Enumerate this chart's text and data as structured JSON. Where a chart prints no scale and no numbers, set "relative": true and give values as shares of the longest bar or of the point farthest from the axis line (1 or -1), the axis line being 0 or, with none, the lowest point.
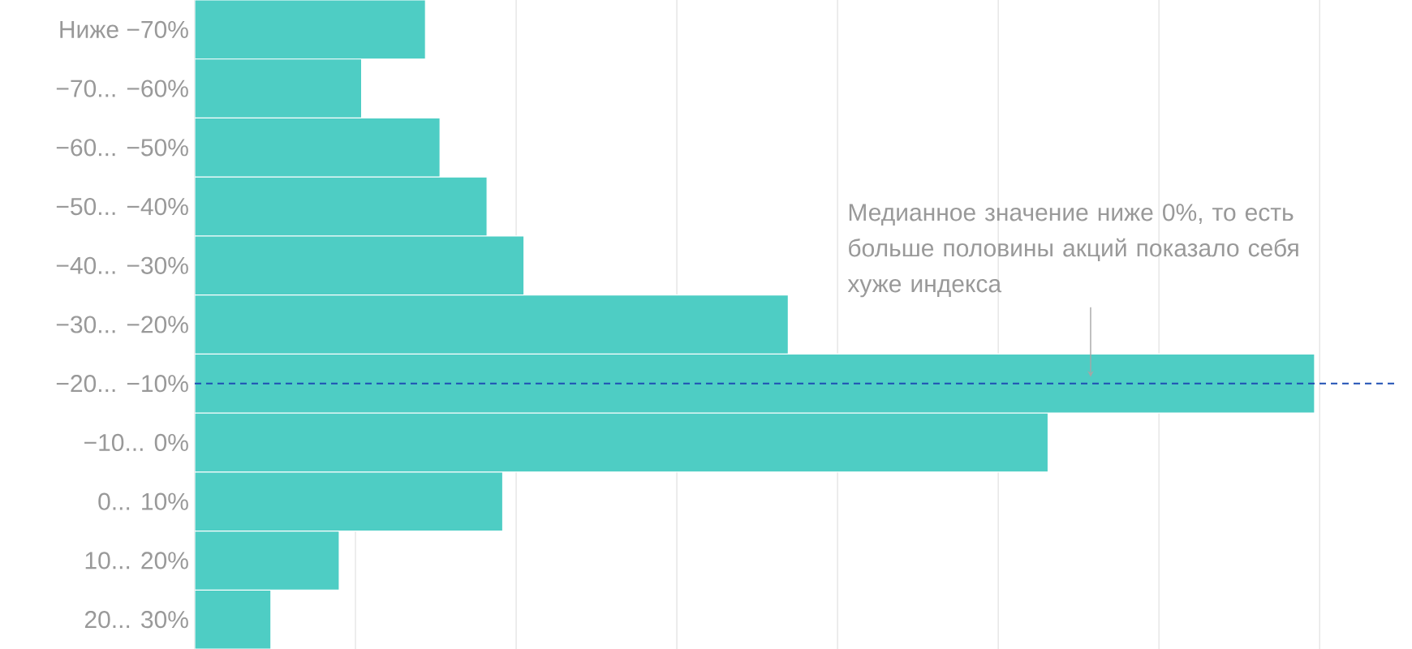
{
  "chart_data": {
    "type": "bar",
    "orientation": "horizontal",
    "relative": true,
    "grid": "x",
    "color": "#4ecdc4",
    "categories": [
      "Ниже −70%",
      "−70... −60%",
      "−60... −50%",
      "−50... −40%",
      "−40... −30%",
      "−30... −20%",
      "−20... −10%",
      "−10... 0%",
      "0... 10%",
      "10... 20%",
      "20... 30%"
    ],
    "values": [
      0.206,
      0.149,
      0.219,
      0.261,
      0.294,
      0.53,
      1,
      0.762,
      0.275,
      0.129,
      0.068
    ],
    "ref_lines": [
      {
        "axis": "y",
        "value": "−20... −10%",
        "color": "#1f4fb4",
        "line_style": "dashed"
      }
    ],
    "annotations": [
      {
        "text": "Медианное значение ниже 0%, то есть больше половины акций показало себя хуже индекса",
        "x": 0.8,
        "y": "−20... −10%"
      }
    ]
  }
}
